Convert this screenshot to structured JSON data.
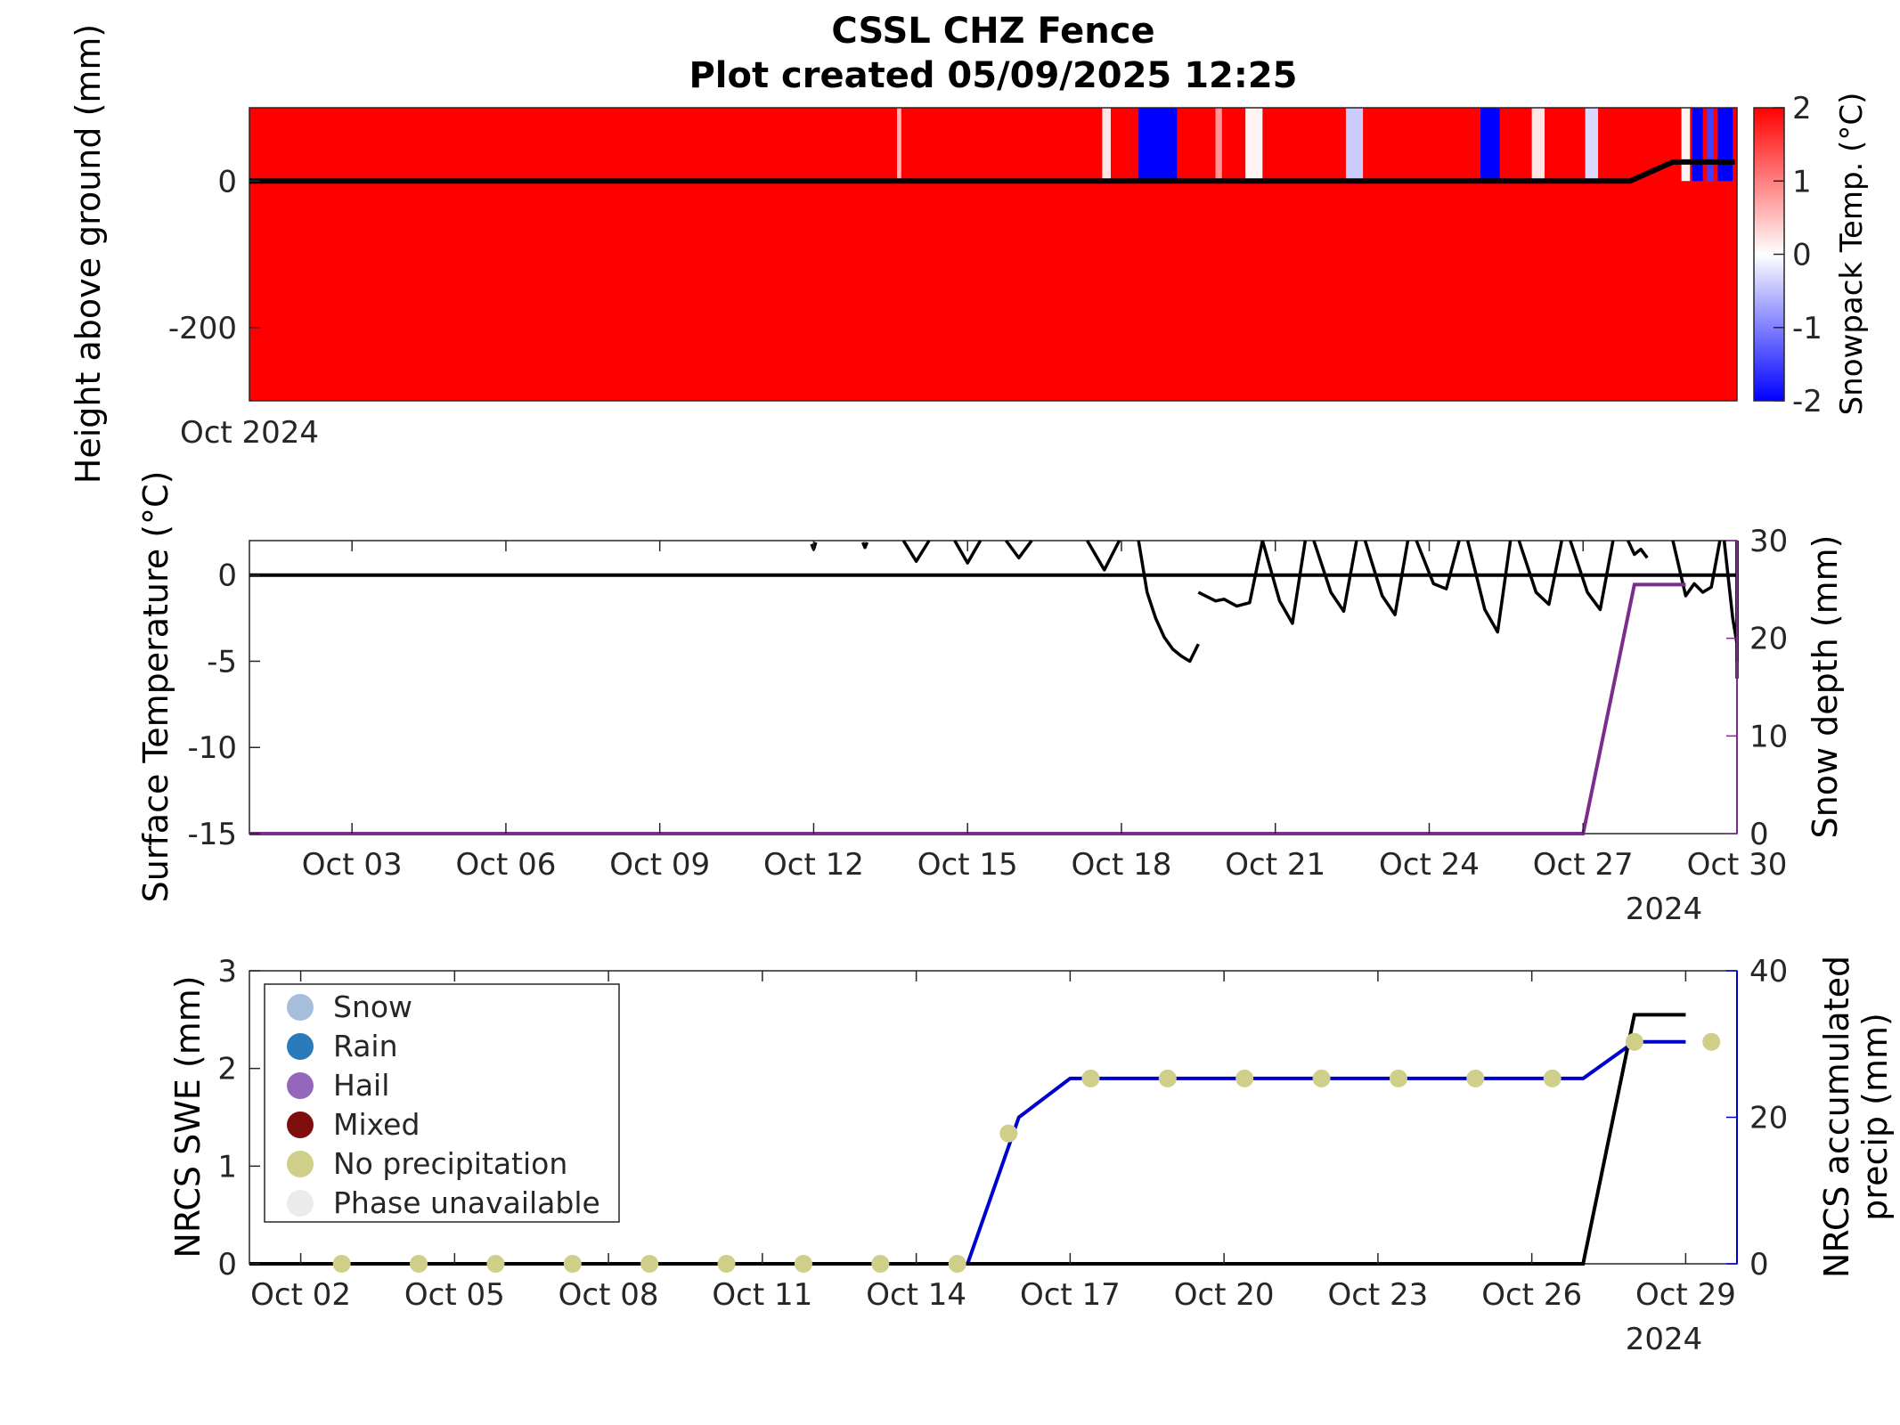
{
  "figure": {
    "title_line1": "CSSL CHZ Fence",
    "title_line2": "Plot created 05/09/2025 12:25"
  },
  "colors": {
    "warm": "#ff0000",
    "cold": "#0000ff",
    "snow_depth": "#7b2d8e",
    "swe": "#000000",
    "precip_line": "#0000cc",
    "no_precip_marker": "#cfcf8a",
    "legend_snow": "#a6bddb",
    "legend_rain": "#2b7bba",
    "legend_hail": "#9467bd",
    "legend_mixed": "#7f0f0f",
    "legend_no_precip": "#cfcf8a",
    "legend_unavailable": "#ebebeb"
  },
  "chart_data": [
    {
      "type": "heatmap",
      "ylabel": "Height above ground (mm)",
      "colorbar_label": "Snowpack Temp. (°C)",
      "colorbar_ticks": [
        "-2",
        "-1",
        "0",
        "1",
        "2"
      ],
      "color_range": [
        -2,
        2
      ],
      "y_ticks": [
        "0",
        "-200"
      ],
      "y_tick_values": [
        0,
        -200
      ],
      "ylim": [
        -300,
        100
      ],
      "xlim": [
        "2024-10-01",
        "2024-10-30"
      ],
      "x_label_left": "Oct 2024",
      "default_temp": 2,
      "temp_bands": [
        {
          "start": "2024-10-13 15:00",
          "end": "2024-10-13 17:00",
          "temp": 0.6
        },
        {
          "start": "2024-10-17 15:00",
          "end": "2024-10-17 19:00",
          "temp": 0.2
        },
        {
          "start": "2024-10-18 08:00",
          "end": "2024-10-19 02:00",
          "temp": -2
        },
        {
          "start": "2024-10-19 20:00",
          "end": "2024-10-19 23:00",
          "temp": 0.8
        },
        {
          "start": "2024-10-20 10:00",
          "end": "2024-10-20 18:00",
          "temp": 0.1
        },
        {
          "start": "2024-10-22 09:00",
          "end": "2024-10-22 17:00",
          "temp": -0.4
        },
        {
          "start": "2024-10-25 00:00",
          "end": "2024-10-25 09:00",
          "temp": -2
        },
        {
          "start": "2024-10-26 00:00",
          "end": "2024-10-26 06:00",
          "temp": 0.2
        },
        {
          "start": "2024-10-27 01:00",
          "end": "2024-10-27 07:00",
          "temp": -0.3
        },
        {
          "start": "2024-10-28 22:00",
          "end": "2024-10-29 02:00",
          "temp": 0.1
        },
        {
          "start": "2024-10-29 03:00",
          "end": "2024-10-29 08:00",
          "temp": -2
        },
        {
          "start": "2024-10-29 10:00",
          "end": "2024-10-29 13:00",
          "temp": -1.5
        },
        {
          "start": "2024-10-29 15:00",
          "end": "2024-10-29 22:00",
          "temp": -2
        }
      ],
      "snow_surface": {
        "x": [
          "2024-10-01 00:00",
          "2024-10-27 22:00",
          "2024-10-28 18:00",
          "2024-10-29 23:00"
        ],
        "y": [
          0,
          0,
          26,
          26
        ]
      }
    },
    {
      "type": "line",
      "ylabel": "Surface Temperature (°C)",
      "y2label": "Snow depth (mm)",
      "ylim": [
        -15,
        2
      ],
      "y_ticks": [
        "0",
        "-5",
        "-10",
        "-15"
      ],
      "y_tick_values": [
        0,
        -5,
        -10,
        -15
      ],
      "y2lim": [
        0,
        30
      ],
      "y2_ticks": [
        "30",
        "20",
        "10",
        "0"
      ],
      "y2_tick_values": [
        30,
        20,
        10,
        0
      ],
      "xlim": [
        "2024-10-01",
        "2024-10-30"
      ],
      "x_ticks": [
        "Oct 03",
        "Oct 06",
        "Oct 09",
        "Oct 12",
        "Oct 15",
        "Oct 18",
        "Oct 21",
        "Oct 24",
        "Oct 27",
        "Oct 30"
      ],
      "x_tick_dates": [
        "2024-10-03",
        "2024-10-06",
        "2024-10-09",
        "2024-10-12",
        "2024-10-15",
        "2024-10-18",
        "2024-10-21",
        "2024-10-24",
        "2024-10-27",
        "2024-10-30"
      ],
      "x_year": "2024",
      "zero_line": 0,
      "surface_temp_segments": [
        {
          "x": [
            "2024-10-11 23:00",
            "2024-10-12 00:00",
            "2024-10-12 01:00"
          ],
          "y": [
            1.8,
            1.5,
            1.9
          ]
        },
        {
          "x": [
            "2024-10-12 23:00",
            "2024-10-13 00:00",
            "2024-10-13 01:00"
          ],
          "y": [
            1.9,
            1.6,
            1.9
          ]
        },
        {
          "x": [
            "2024-10-13 18:00",
            "2024-10-14 00:00",
            "2024-10-14 06:00"
          ],
          "y": [
            2.0,
            0.8,
            2.0
          ]
        },
        {
          "x": [
            "2024-10-14 18:00",
            "2024-10-15 00:00",
            "2024-10-15 06:00"
          ],
          "y": [
            2.0,
            0.7,
            2.0
          ]
        },
        {
          "x": [
            "2024-10-15 18:00",
            "2024-10-16 00:00",
            "2024-10-16 06:00"
          ],
          "y": [
            2.0,
            1.0,
            2.0
          ]
        },
        {
          "x": [
            "2024-10-17 08:00",
            "2024-10-17 16:00",
            "2024-10-17 23:00"
          ],
          "y": [
            2.0,
            0.3,
            2.0
          ]
        },
        {
          "x": [
            "2024-10-18 08:00",
            "2024-10-18 12:00",
            "2024-10-18 16:00",
            "2024-10-18 20:00",
            "2024-10-19 00:00",
            "2024-10-19 04:00",
            "2024-10-19 08:00",
            "2024-10-19 12:00"
          ],
          "y": [
            2.0,
            -1.0,
            -2.5,
            -3.6,
            -4.3,
            -4.7,
            -5.0,
            -4.0
          ]
        },
        {
          "x": [
            "2024-10-19 12:00",
            "2024-10-19 20:00",
            "2024-10-20 00:00",
            "2024-10-20 06:00",
            "2024-10-20 12:00",
            "2024-10-20 18:00"
          ],
          "y": [
            -1.0,
            -1.5,
            -1.4,
            -1.8,
            -1.6,
            2.0
          ]
        },
        {
          "x": [
            "2024-10-20 18:00",
            "2024-10-21 02:00",
            "2024-10-21 08:00",
            "2024-10-21 14:00"
          ],
          "y": [
            2.0,
            -1.5,
            -2.8,
            2.0
          ]
        },
        {
          "x": [
            "2024-10-21 18:00",
            "2024-10-22 02:00",
            "2024-10-22 08:00",
            "2024-10-22 14:00"
          ],
          "y": [
            2.0,
            -1.0,
            -2.1,
            2.0
          ]
        },
        {
          "x": [
            "2024-10-22 18:00",
            "2024-10-23 02:00",
            "2024-10-23 08:00",
            "2024-10-23 14:00"
          ],
          "y": [
            2.0,
            -1.2,
            -2.3,
            2.0
          ]
        },
        {
          "x": [
            "2024-10-23 18:00",
            "2024-10-24 02:00",
            "2024-10-24 08:00",
            "2024-10-24 14:00"
          ],
          "y": [
            2.0,
            -0.5,
            -0.8,
            2.0
          ]
        },
        {
          "x": [
            "2024-10-24 18:00",
            "2024-10-25 02:00",
            "2024-10-25 08:00",
            "2024-10-25 14:00"
          ],
          "y": [
            2.0,
            -2.0,
            -3.3,
            2.0
          ]
        },
        {
          "x": [
            "2024-10-25 18:00",
            "2024-10-26 02:00",
            "2024-10-26 08:00",
            "2024-10-26 14:00"
          ],
          "y": [
            2.0,
            -1.0,
            -1.7,
            2.0
          ]
        },
        {
          "x": [
            "2024-10-26 18:00",
            "2024-10-27 02:00",
            "2024-10-27 08:00",
            "2024-10-27 14:00"
          ],
          "y": [
            2.0,
            -1.0,
            -2.0,
            2.0
          ]
        },
        {
          "x": [
            "2024-10-27 21:00",
            "2024-10-28 00:00",
            "2024-10-28 03:00",
            "2024-10-28 06:00"
          ],
          "y": [
            2.0,
            1.2,
            1.5,
            1.0
          ]
        },
        {
          "x": [
            "2024-10-28 18:00",
            "2024-10-29 00:00",
            "2024-10-29 04:00",
            "2024-10-29 08:00",
            "2024-10-29 12:00",
            "2024-10-29 16:00"
          ],
          "y": [
            2.0,
            -1.2,
            -0.5,
            -1.0,
            -0.7,
            2.0
          ]
        },
        {
          "x": [
            "2024-10-29 18:00",
            "2024-10-29 22:00",
            "2024-10-30 02:00",
            "2024-10-30 06:00",
            "2024-10-30 10:00",
            "2024-10-30 14:00"
          ],
          "y": [
            2.0,
            -2.5,
            -4.0,
            -5.0,
            -4.2,
            2.0
          ]
        },
        {
          "x": [
            "2024-10-30 18:00",
            "2024-10-31 00:00",
            "2024-10-31 06:00"
          ],
          "y": [
            2.0,
            -4.5,
            -6.0
          ]
        }
      ],
      "snow_depth": {
        "x": [
          "2024-10-01 00:00",
          "2024-10-27 00:00",
          "2024-10-28 00:00",
          "2024-10-29 00:00"
        ],
        "y": [
          0,
          0,
          25.5,
          25.5
        ]
      }
    },
    {
      "type": "line",
      "ylabel": "NRCS SWE (mm)",
      "y2label_line1": "NRCS accumulated",
      "y2label_line2": "precip (mm)",
      "ylim": [
        0,
        3
      ],
      "y_ticks": [
        "3",
        "2",
        "1",
        "0"
      ],
      "y_tick_values": [
        3,
        2,
        1,
        0
      ],
      "y2lim": [
        0,
        40
      ],
      "y2_ticks": [
        "40",
        "20",
        "0"
      ],
      "y2_tick_values": [
        40,
        20,
        0
      ],
      "xlim": [
        "2024-10-01",
        "2024-10-30"
      ],
      "x_ticks": [
        "Oct 02",
        "Oct 05",
        "Oct 08",
        "Oct 11",
        "Oct 14",
        "Oct 17",
        "Oct 20",
        "Oct 23",
        "Oct 26",
        "Oct 29"
      ],
      "x_tick_dates": [
        "2024-10-02",
        "2024-10-05",
        "2024-10-08",
        "2024-10-11",
        "2024-10-14",
        "2024-10-17",
        "2024-10-20",
        "2024-10-23",
        "2024-10-26",
        "2024-10-29"
      ],
      "x_year": "2024",
      "swe": {
        "x": [
          "2024-10-01",
          "2024-10-27",
          "2024-10-28",
          "2024-10-29"
        ],
        "y": [
          0,
          0,
          2.55,
          2.55
        ]
      },
      "precip": {
        "x": [
          "2024-10-01",
          "2024-10-15",
          "2024-10-16",
          "2024-10-17",
          "2024-10-27",
          "2024-10-28",
          "2024-10-29"
        ],
        "y": [
          0,
          0,
          20,
          25.3,
          25.3,
          30.3,
          30.3
        ]
      },
      "phase_markers": {
        "phase": "No precipitation",
        "x": [
          "2024-10-02",
          "2024-10-03",
          "2024-10-04",
          "2024-10-05",
          "2024-10-06",
          "2024-10-07",
          "2024-10-08",
          "2024-10-09",
          "2024-10-10",
          "2024-10-11",
          "2024-10-12",
          "2024-10-13",
          "2024-10-14",
          "2024-10-15",
          "2024-10-16",
          "2024-10-17",
          "2024-10-18",
          "2024-10-19",
          "2024-10-20",
          "2024-10-21",
          "2024-10-22",
          "2024-10-23",
          "2024-10-24",
          "2024-10-25",
          "2024-10-26",
          "2024-10-27",
          "2024-10-28",
          "2024-10-29"
        ],
        "y": [
          0,
          0,
          0,
          0,
          0,
          0,
          0,
          0,
          0,
          0,
          0,
          0,
          0,
          17.8,
          25.3,
          25.3,
          25.3,
          25.3,
          25.3,
          25.3,
          25.3,
          30.3,
          30.3,
          null,
          null,
          null,
          null,
          null
        ]
      },
      "legend_position": "top-left",
      "legend": [
        "Snow",
        "Rain",
        "Hail",
        "Mixed",
        "No precipitation",
        "Phase unavailable"
      ]
    }
  ]
}
